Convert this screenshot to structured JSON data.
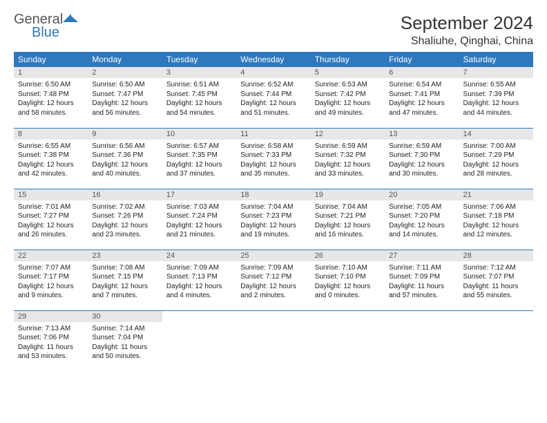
{
  "brand": {
    "name1": "General",
    "name2": "Blue",
    "mark_color": "#2f78bd"
  },
  "title": "September 2024",
  "location": "Shaliuhe, Qinghai, China",
  "colors": {
    "header_bg": "#2f78bd",
    "header_fg": "#ffffff",
    "daynum_bg": "#e7e7e7",
    "rule": "#2f78bd",
    "text": "#222222"
  },
  "days_of_week": [
    "Sunday",
    "Monday",
    "Tuesday",
    "Wednesday",
    "Thursday",
    "Friday",
    "Saturday"
  ],
  "weeks": [
    [
      {
        "n": "1",
        "sr": "6:50 AM",
        "ss": "7:48 PM",
        "dl": "12 hours and 58 minutes."
      },
      {
        "n": "2",
        "sr": "6:50 AM",
        "ss": "7:47 PM",
        "dl": "12 hours and 56 minutes."
      },
      {
        "n": "3",
        "sr": "6:51 AM",
        "ss": "7:45 PM",
        "dl": "12 hours and 54 minutes."
      },
      {
        "n": "4",
        "sr": "6:52 AM",
        "ss": "7:44 PM",
        "dl": "12 hours and 51 minutes."
      },
      {
        "n": "5",
        "sr": "6:53 AM",
        "ss": "7:42 PM",
        "dl": "12 hours and 49 minutes."
      },
      {
        "n": "6",
        "sr": "6:54 AM",
        "ss": "7:41 PM",
        "dl": "12 hours and 47 minutes."
      },
      {
        "n": "7",
        "sr": "6:55 AM",
        "ss": "7:39 PM",
        "dl": "12 hours and 44 minutes."
      }
    ],
    [
      {
        "n": "8",
        "sr": "6:55 AM",
        "ss": "7:38 PM",
        "dl": "12 hours and 42 minutes."
      },
      {
        "n": "9",
        "sr": "6:56 AM",
        "ss": "7:36 PM",
        "dl": "12 hours and 40 minutes."
      },
      {
        "n": "10",
        "sr": "6:57 AM",
        "ss": "7:35 PM",
        "dl": "12 hours and 37 minutes."
      },
      {
        "n": "11",
        "sr": "6:58 AM",
        "ss": "7:33 PM",
        "dl": "12 hours and 35 minutes."
      },
      {
        "n": "12",
        "sr": "6:59 AM",
        "ss": "7:32 PM",
        "dl": "12 hours and 33 minutes."
      },
      {
        "n": "13",
        "sr": "6:59 AM",
        "ss": "7:30 PM",
        "dl": "12 hours and 30 minutes."
      },
      {
        "n": "14",
        "sr": "7:00 AM",
        "ss": "7:29 PM",
        "dl": "12 hours and 28 minutes."
      }
    ],
    [
      {
        "n": "15",
        "sr": "7:01 AM",
        "ss": "7:27 PM",
        "dl": "12 hours and 26 minutes."
      },
      {
        "n": "16",
        "sr": "7:02 AM",
        "ss": "7:26 PM",
        "dl": "12 hours and 23 minutes."
      },
      {
        "n": "17",
        "sr": "7:03 AM",
        "ss": "7:24 PM",
        "dl": "12 hours and 21 minutes."
      },
      {
        "n": "18",
        "sr": "7:04 AM",
        "ss": "7:23 PM",
        "dl": "12 hours and 19 minutes."
      },
      {
        "n": "19",
        "sr": "7:04 AM",
        "ss": "7:21 PM",
        "dl": "12 hours and 16 minutes."
      },
      {
        "n": "20",
        "sr": "7:05 AM",
        "ss": "7:20 PM",
        "dl": "12 hours and 14 minutes."
      },
      {
        "n": "21",
        "sr": "7:06 AM",
        "ss": "7:18 PM",
        "dl": "12 hours and 12 minutes."
      }
    ],
    [
      {
        "n": "22",
        "sr": "7:07 AM",
        "ss": "7:17 PM",
        "dl": "12 hours and 9 minutes."
      },
      {
        "n": "23",
        "sr": "7:08 AM",
        "ss": "7:15 PM",
        "dl": "12 hours and 7 minutes."
      },
      {
        "n": "24",
        "sr": "7:09 AM",
        "ss": "7:13 PM",
        "dl": "12 hours and 4 minutes."
      },
      {
        "n": "25",
        "sr": "7:09 AM",
        "ss": "7:12 PM",
        "dl": "12 hours and 2 minutes."
      },
      {
        "n": "26",
        "sr": "7:10 AM",
        "ss": "7:10 PM",
        "dl": "12 hours and 0 minutes."
      },
      {
        "n": "27",
        "sr": "7:11 AM",
        "ss": "7:09 PM",
        "dl": "11 hours and 57 minutes."
      },
      {
        "n": "28",
        "sr": "7:12 AM",
        "ss": "7:07 PM",
        "dl": "11 hours and 55 minutes."
      }
    ],
    [
      {
        "n": "29",
        "sr": "7:13 AM",
        "ss": "7:06 PM",
        "dl": "11 hours and 53 minutes."
      },
      {
        "n": "30",
        "sr": "7:14 AM",
        "ss": "7:04 PM",
        "dl": "11 hours and 50 minutes."
      },
      null,
      null,
      null,
      null,
      null
    ]
  ],
  "labels": {
    "sunrise": "Sunrise:",
    "sunset": "Sunset:",
    "daylight": "Daylight:"
  }
}
